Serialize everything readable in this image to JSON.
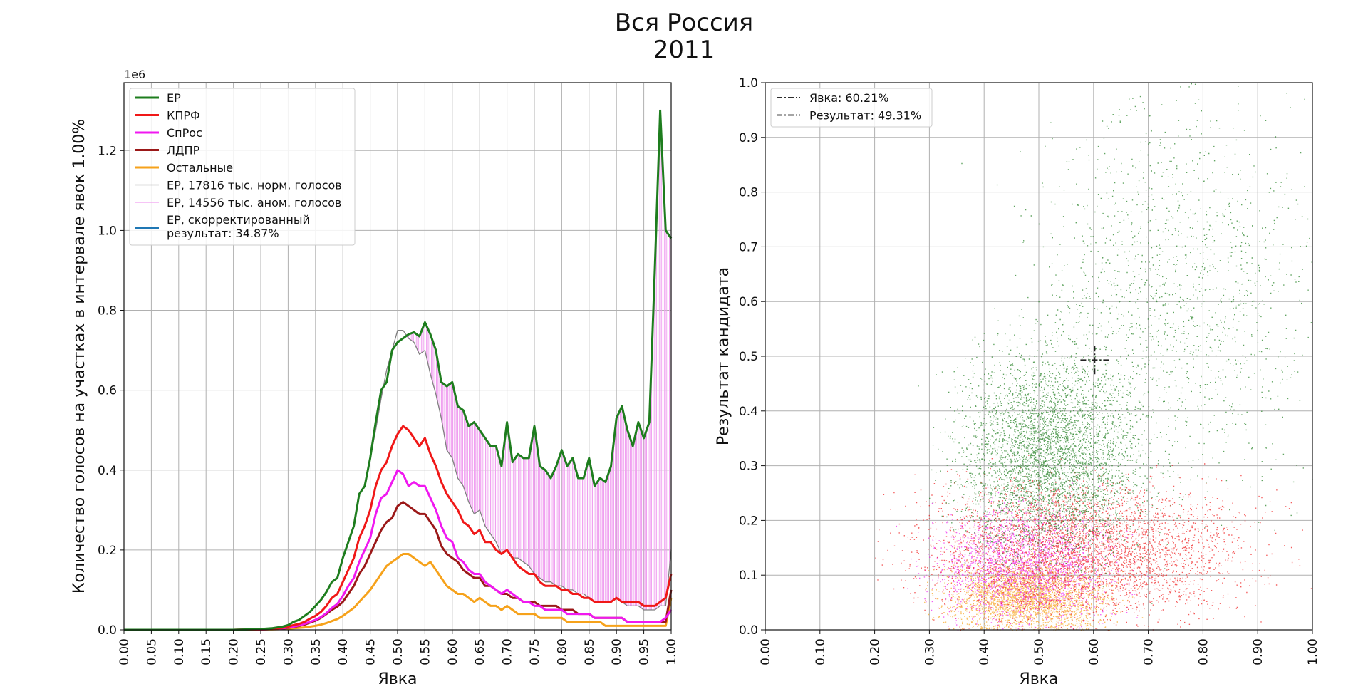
{
  "figure": {
    "title_line1": "Вся Россия",
    "title_line2": "2011"
  },
  "colors": {
    "ER": "#1e7d1e",
    "KPRF": "#f01818",
    "SpRos": "#f018f0",
    "LDPR": "#9b1818",
    "Other": "#f6a21b",
    "ER_norm": "#808080",
    "ER_anom": "#f0a0f0",
    "ER_corr": "#1f77b4",
    "grid": "#b0b0b0"
  },
  "chart_data": [
    {
      "type": "line",
      "xlabel": "Явка",
      "ylabel": "Количество голосов на участках в интервале явок 1.00%",
      "y_offset_label": "1e6",
      "xlim": [
        0,
        1
      ],
      "ylim": [
        0,
        1.37
      ],
      "grid": true,
      "legend_position": "upper-left",
      "xticks": [
        "0.00",
        "0.05",
        "0.10",
        "0.15",
        "0.20",
        "0.25",
        "0.30",
        "0.35",
        "0.40",
        "0.45",
        "0.50",
        "0.55",
        "0.60",
        "0.65",
        "0.70",
        "0.75",
        "0.80",
        "0.85",
        "0.90",
        "0.95",
        "1.00"
      ],
      "yticks": [
        "0.0",
        "0.2",
        "0.4",
        "0.6",
        "0.8",
        "1.0",
        "1.2"
      ],
      "x": [
        0.0,
        0.2,
        0.25,
        0.27,
        0.29,
        0.3,
        0.31,
        0.32,
        0.33,
        0.34,
        0.35,
        0.36,
        0.37,
        0.38,
        0.39,
        0.4,
        0.41,
        0.42,
        0.43,
        0.44,
        0.45,
        0.46,
        0.47,
        0.48,
        0.49,
        0.5,
        0.51,
        0.52,
        0.53,
        0.54,
        0.55,
        0.56,
        0.57,
        0.58,
        0.59,
        0.6,
        0.61,
        0.62,
        0.63,
        0.64,
        0.65,
        0.66,
        0.67,
        0.68,
        0.69,
        0.7,
        0.71,
        0.72,
        0.73,
        0.74,
        0.75,
        0.76,
        0.77,
        0.78,
        0.79,
        0.8,
        0.81,
        0.82,
        0.83,
        0.84,
        0.85,
        0.86,
        0.87,
        0.88,
        0.89,
        0.9,
        0.91,
        0.92,
        0.93,
        0.94,
        0.95,
        0.96,
        0.97,
        0.98,
        0.99,
        1.0
      ],
      "series": [
        {
          "name": "ЕР",
          "color_key": "ER",
          "width": 3,
          "values": [
            0,
            0,
            0.002,
            0.004,
            0.008,
            0.012,
            0.02,
            0.025,
            0.035,
            0.045,
            0.06,
            0.075,
            0.095,
            0.12,
            0.13,
            0.18,
            0.22,
            0.26,
            0.34,
            0.36,
            0.43,
            0.52,
            0.6,
            0.62,
            0.7,
            0.72,
            0.73,
            0.74,
            0.745,
            0.735,
            0.77,
            0.74,
            0.7,
            0.62,
            0.61,
            0.62,
            0.56,
            0.55,
            0.51,
            0.52,
            0.5,
            0.48,
            0.46,
            0.46,
            0.41,
            0.52,
            0.42,
            0.44,
            0.43,
            0.43,
            0.51,
            0.41,
            0.4,
            0.38,
            0.41,
            0.45,
            0.41,
            0.43,
            0.38,
            0.38,
            0.43,
            0.36,
            0.38,
            0.37,
            0.41,
            0.53,
            0.56,
            0.5,
            0.46,
            0.52,
            0.48,
            0.52,
            0.9,
            1.3,
            1.0,
            0.98
          ]
        },
        {
          "name": "КПРФ",
          "color_key": "KPRF",
          "width": 3,
          "values": [
            0,
            0,
            0.001,
            0.002,
            0.005,
            0.008,
            0.012,
            0.015,
            0.02,
            0.028,
            0.035,
            0.045,
            0.06,
            0.08,
            0.09,
            0.12,
            0.15,
            0.18,
            0.23,
            0.26,
            0.3,
            0.36,
            0.4,
            0.42,
            0.46,
            0.49,
            0.51,
            0.5,
            0.48,
            0.46,
            0.48,
            0.44,
            0.41,
            0.37,
            0.34,
            0.32,
            0.3,
            0.27,
            0.26,
            0.24,
            0.25,
            0.22,
            0.22,
            0.2,
            0.19,
            0.2,
            0.18,
            0.16,
            0.15,
            0.14,
            0.14,
            0.12,
            0.11,
            0.11,
            0.11,
            0.1,
            0.1,
            0.09,
            0.09,
            0.08,
            0.08,
            0.07,
            0.07,
            0.07,
            0.07,
            0.08,
            0.07,
            0.07,
            0.07,
            0.07,
            0.06,
            0.06,
            0.06,
            0.07,
            0.08,
            0.14
          ]
        },
        {
          "name": "СпРос",
          "color_key": "SpRos",
          "width": 3,
          "values": [
            0,
            0,
            0.001,
            0.002,
            0.004,
            0.006,
            0.008,
            0.011,
            0.015,
            0.02,
            0.025,
            0.032,
            0.042,
            0.055,
            0.065,
            0.085,
            0.11,
            0.13,
            0.17,
            0.2,
            0.23,
            0.29,
            0.33,
            0.34,
            0.37,
            0.4,
            0.39,
            0.36,
            0.37,
            0.36,
            0.36,
            0.33,
            0.3,
            0.26,
            0.23,
            0.22,
            0.18,
            0.17,
            0.15,
            0.14,
            0.14,
            0.12,
            0.11,
            0.1,
            0.09,
            0.1,
            0.09,
            0.08,
            0.07,
            0.07,
            0.06,
            0.06,
            0.05,
            0.05,
            0.05,
            0.05,
            0.04,
            0.04,
            0.04,
            0.04,
            0.04,
            0.03,
            0.03,
            0.03,
            0.03,
            0.03,
            0.03,
            0.02,
            0.02,
            0.02,
            0.02,
            0.02,
            0.02,
            0.02,
            0.03,
            0.05
          ]
        },
        {
          "name": "ЛДПР",
          "color_key": "LDPR",
          "width": 3,
          "values": [
            0,
            0,
            0.001,
            0.002,
            0.003,
            0.005,
            0.007,
            0.01,
            0.013,
            0.018,
            0.023,
            0.03,
            0.04,
            0.05,
            0.058,
            0.07,
            0.09,
            0.11,
            0.14,
            0.16,
            0.19,
            0.22,
            0.25,
            0.27,
            0.28,
            0.31,
            0.32,
            0.31,
            0.3,
            0.29,
            0.29,
            0.27,
            0.25,
            0.21,
            0.19,
            0.18,
            0.17,
            0.15,
            0.14,
            0.13,
            0.13,
            0.11,
            0.11,
            0.1,
            0.09,
            0.09,
            0.08,
            0.08,
            0.07,
            0.07,
            0.07,
            0.06,
            0.06,
            0.06,
            0.06,
            0.05,
            0.05,
            0.05,
            0.04,
            0.04,
            0.04,
            0.03,
            0.03,
            0.03,
            0.03,
            0.03,
            0.03,
            0.02,
            0.02,
            0.02,
            0.02,
            0.02,
            0.02,
            0.02,
            0.02,
            0.1
          ]
        },
        {
          "name": "Остальные",
          "color_key": "Other",
          "width": 3,
          "values": [
            0,
            0,
            0.001,
            0.001,
            0.002,
            0.003,
            0.004,
            0.005,
            0.006,
            0.008,
            0.01,
            0.013,
            0.017,
            0.022,
            0.027,
            0.035,
            0.045,
            0.055,
            0.07,
            0.085,
            0.1,
            0.12,
            0.14,
            0.16,
            0.17,
            0.18,
            0.19,
            0.19,
            0.18,
            0.17,
            0.16,
            0.17,
            0.15,
            0.13,
            0.11,
            0.1,
            0.09,
            0.09,
            0.08,
            0.07,
            0.08,
            0.07,
            0.06,
            0.06,
            0.05,
            0.06,
            0.05,
            0.04,
            0.04,
            0.04,
            0.04,
            0.03,
            0.03,
            0.03,
            0.03,
            0.03,
            0.02,
            0.02,
            0.02,
            0.02,
            0.02,
            0.02,
            0.02,
            0.01,
            0.01,
            0.01,
            0.01,
            0.01,
            0.01,
            0.01,
            0.01,
            0.01,
            0.01,
            0.01,
            0.01,
            0.08
          ]
        },
        {
          "name": "ЕР, 17816 тыс. норм. голосов",
          "color_key": "ER_norm",
          "width": 1.3,
          "values": [
            0,
            0,
            0.002,
            0.004,
            0.008,
            0.012,
            0.02,
            0.025,
            0.035,
            0.045,
            0.06,
            0.075,
            0.095,
            0.12,
            0.13,
            0.18,
            0.22,
            0.26,
            0.34,
            0.36,
            0.43,
            0.5,
            0.58,
            0.65,
            0.7,
            0.75,
            0.75,
            0.73,
            0.72,
            0.69,
            0.7,
            0.64,
            0.59,
            0.53,
            0.45,
            0.43,
            0.38,
            0.36,
            0.32,
            0.29,
            0.3,
            0.26,
            0.24,
            0.22,
            0.19,
            0.2,
            0.18,
            0.18,
            0.17,
            0.16,
            0.14,
            0.13,
            0.12,
            0.12,
            0.11,
            0.11,
            0.1,
            0.1,
            0.09,
            0.09,
            0.08,
            0.07,
            0.07,
            0.07,
            0.07,
            0.08,
            0.07,
            0.06,
            0.06,
            0.06,
            0.05,
            0.05,
            0.05,
            0.06,
            0.06,
            0.2
          ]
        }
      ],
      "anomaly_series_name": "ЕР, 14556 тыс. аном. голосов",
      "corrected_series_name": "ЕР, скорректированный",
      "corrected_series_name_2": "результат: 34.87%"
    },
    {
      "type": "scatter",
      "xlabel": "Явка",
      "ylabel": "Результат кандидата",
      "xlim": [
        0,
        1
      ],
      "ylim": [
        0,
        1
      ],
      "grid": true,
      "legend_position": "upper-left",
      "xticks": [
        "0.00",
        "0.10",
        "0.20",
        "0.30",
        "0.40",
        "0.50",
        "0.60",
        "0.70",
        "0.80",
        "0.90",
        "1.00"
      ],
      "yticks": [
        "0.0",
        "0.1",
        "0.2",
        "0.3",
        "0.4",
        "0.5",
        "0.6",
        "0.7",
        "0.8",
        "0.9",
        "1.0"
      ],
      "legend": [
        "Явка: 60.21%",
        "Результат: 49.31%"
      ],
      "marker": {
        "x": 0.6021,
        "y": 0.4931
      },
      "clusters": [
        {
          "name": "Остальные",
          "color_key": "Other",
          "center": [
            0.48,
            0.06
          ],
          "spread": [
            0.07,
            0.03
          ],
          "count": 2600
        },
        {
          "name": "СпРос",
          "color_key": "SpRos",
          "center": [
            0.48,
            0.12
          ],
          "spread": [
            0.08,
            0.05
          ],
          "count": 2200
        },
        {
          "name": "КПРФ",
          "color_key": "KPRF",
          "center": [
            0.58,
            0.15
          ],
          "spread": [
            0.14,
            0.06
          ],
          "count": 4200
        },
        {
          "name": "ЕР",
          "color_key": "ER",
          "center": [
            0.52,
            0.32
          ],
          "spread": [
            0.08,
            0.09
          ],
          "count": 4200
        },
        {
          "name": "ЕР",
          "color_key": "ER",
          "center": [
            0.75,
            0.6
          ],
          "spread": [
            0.13,
            0.18
          ],
          "count": 1600
        }
      ]
    }
  ]
}
